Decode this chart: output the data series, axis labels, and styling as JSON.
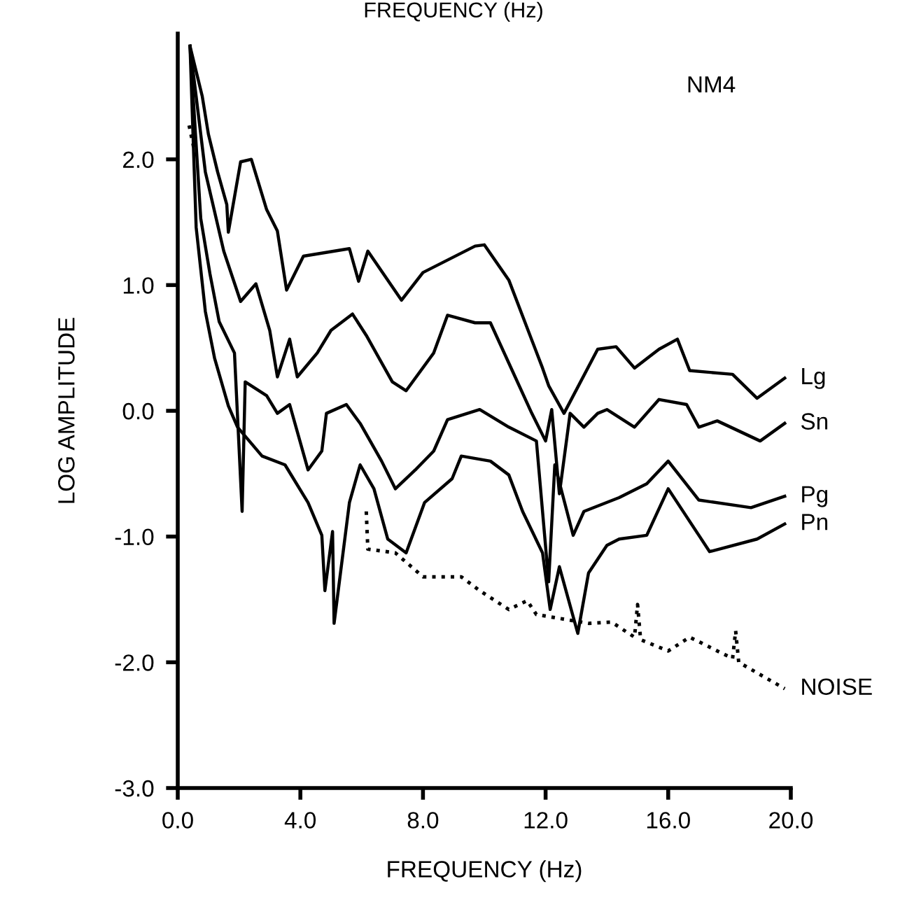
{
  "chart_data": {
    "type": "line",
    "xlabel": "FREQUENCY (Hz)",
    "ylabel": "LOG AMPLITUDE",
    "annotations": [
      "FREQUENCY (Hz)",
      "NM4"
    ],
    "xlim": [
      0,
      20
    ],
    "ylim": [
      -3,
      3
    ],
    "xticks": [
      {
        "value": 0,
        "label": "0.0"
      },
      {
        "value": 4,
        "label": "4.0"
      },
      {
        "value": 8,
        "label": "8.0"
      },
      {
        "value": 12,
        "label": "12.0"
      },
      {
        "value": 16,
        "label": "16.0"
      },
      {
        "value": 20,
        "label": "20.0"
      }
    ],
    "yticks": [
      {
        "value": -3,
        "label": "-3.0"
      },
      {
        "value": -2,
        "label": "-2.0"
      },
      {
        "value": -1,
        "label": "-1.0"
      },
      {
        "value": 0,
        "label": "0.0"
      },
      {
        "value": 1,
        "label": "1.0"
      },
      {
        "value": 2,
        "label": "2.0"
      }
    ],
    "grid": false,
    "legend": false,
    "marker": "none",
    "series": [
      {
        "name": "Lg",
        "color": "#000000",
        "line_style": "solid",
        "x": [
          0.4,
          0.8,
          1.0,
          1.3,
          1.6,
          1.65,
          2.05,
          2.4,
          2.9,
          3.25,
          3.55,
          4.1,
          5.6,
          5.9,
          6.2,
          7.3,
          8.0,
          9.7,
          10.0,
          10.8,
          11.9,
          12.1,
          12.6,
          13.7,
          14.3,
          14.9,
          15.7,
          16.3,
          16.7,
          18.1,
          18.9,
          19.8
        ],
        "values": [
          2.9,
          2.5,
          2.2,
          1.9,
          1.64,
          1.42,
          1.98,
          2.0,
          1.6,
          1.43,
          0.96,
          1.23,
          1.29,
          1.03,
          1.27,
          0.88,
          1.1,
          1.31,
          1.32,
          1.04,
          0.34,
          0.2,
          -0.02,
          0.49,
          0.51,
          0.34,
          0.49,
          0.57,
          0.32,
          0.29,
          0.1,
          0.26
        ]
      },
      {
        "name": "Sn",
        "color": "#000000",
        "line_style": "solid",
        "x": [
          0.4,
          0.9,
          1.5,
          2.05,
          2.55,
          3.0,
          3.25,
          3.65,
          3.9,
          4.55,
          5.0,
          5.7,
          6.15,
          7.0,
          7.45,
          8.35,
          8.8,
          9.7,
          10.2,
          10.8,
          11.55,
          12.0,
          12.2,
          12.45,
          12.8,
          13.25,
          13.7,
          14.0,
          14.9,
          15.7,
          16.6,
          17.0,
          17.6,
          19.0,
          19.8
        ],
        "values": [
          2.9,
          1.9,
          1.27,
          0.87,
          1.01,
          0.64,
          0.27,
          0.57,
          0.27,
          0.46,
          0.64,
          0.77,
          0.6,
          0.23,
          0.16,
          0.46,
          0.76,
          0.7,
          0.7,
          0.38,
          -0.02,
          -0.24,
          0.01,
          -0.66,
          -0.02,
          -0.13,
          -0.02,
          0.01,
          -0.13,
          0.09,
          0.05,
          -0.13,
          -0.08,
          -0.24,
          -0.1
        ]
      },
      {
        "name": "Pg",
        "color": "#000000",
        "line_style": "solid",
        "x": [
          0.4,
          0.75,
          1.05,
          1.35,
          1.85,
          2.1,
          2.2,
          2.9,
          3.25,
          3.65,
          4.25,
          4.7,
          4.85,
          5.5,
          5.95,
          6.65,
          7.1,
          7.75,
          8.35,
          8.8,
          9.85,
          10.8,
          11.7,
          12.1,
          12.3,
          12.9,
          13.25,
          14.4,
          15.3,
          16.0,
          17.0,
          18.7,
          19.8
        ],
        "values": [
          2.9,
          1.53,
          1.09,
          0.71,
          0.46,
          -0.8,
          0.23,
          0.12,
          -0.02,
          0.05,
          -0.47,
          -0.32,
          -0.02,
          0.05,
          -0.1,
          -0.4,
          -0.62,
          -0.47,
          -0.32,
          -0.07,
          0.01,
          -0.13,
          -0.24,
          -1.36,
          -0.43,
          -0.99,
          -0.8,
          -0.69,
          -0.58,
          -0.4,
          -0.71,
          -0.77,
          -0.68
        ]
      },
      {
        "name": "Pn",
        "color": "#000000",
        "line_style": "solid",
        "x": [
          0.4,
          0.6,
          0.9,
          1.2,
          1.65,
          1.95,
          2.75,
          3.5,
          4.25,
          4.7,
          4.8,
          5.05,
          5.1,
          5.6,
          5.95,
          6.4,
          6.85,
          7.45,
          8.05,
          8.95,
          9.25,
          10.2,
          10.8,
          11.25,
          11.9,
          12.15,
          12.45,
          13.05,
          13.4,
          14.0,
          14.4,
          15.3,
          16.0,
          17.0,
          17.35,
          18.9,
          19.8
        ],
        "values": [
          2.9,
          1.46,
          0.79,
          0.42,
          0.04,
          -0.13,
          -0.36,
          -0.43,
          -0.73,
          -0.99,
          -1.43,
          -0.96,
          -1.69,
          -0.73,
          -0.43,
          -0.62,
          -1.02,
          -1.13,
          -0.73,
          -0.54,
          -0.36,
          -0.4,
          -0.51,
          -0.8,
          -1.13,
          -1.58,
          -1.24,
          -1.77,
          -1.29,
          -1.07,
          -1.02,
          -0.99,
          -0.62,
          -0.99,
          -1.12,
          -1.02,
          -0.9
        ]
      },
      {
        "name": "NOISE",
        "color": "#000000",
        "line_style": "dotted",
        "x": [
          0.37,
          0.6,
          1.0,
          6.15,
          6.2,
          7.1,
          8.0,
          9.25,
          9.85,
          10.8,
          11.4,
          11.7,
          13.4,
          14.15,
          14.9,
          15.0,
          15.1,
          16.0,
          16.7,
          18.1,
          18.2,
          18.3,
          19.8
        ],
        "values": [
          2.27,
          2.0,
          null,
          -0.8,
          -1.1,
          -1.13,
          -1.32,
          -1.32,
          -1.43,
          -1.58,
          -1.51,
          -1.62,
          -1.69,
          -1.68,
          -1.8,
          -1.54,
          -1.82,
          -1.91,
          -1.8,
          -1.97,
          -1.75,
          -2.0,
          -2.21
        ]
      }
    ]
  }
}
